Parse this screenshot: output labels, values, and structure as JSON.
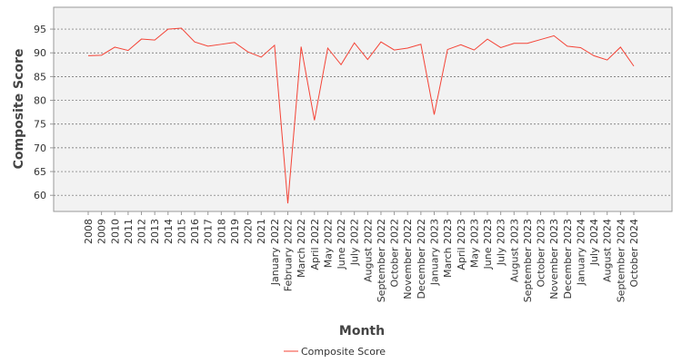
{
  "chart_data": {
    "type": "line",
    "x_label": "Month",
    "y_label": "Composite Score",
    "categories": [
      "2008",
      "2009",
      "2010",
      "2011",
      "2012",
      "2013",
      "2014",
      "2015",
      "2016",
      "2017",
      "2018",
      "2019",
      "2020",
      "2021",
      "January 2022",
      "February 2022",
      "March 2022",
      "April 2022",
      "May 2022",
      "June 2022",
      "July 2022",
      "August 2022",
      "September 2022",
      "October 2022",
      "November 2022",
      "December 2022",
      "January 2023",
      "March 2023",
      "April 2023",
      "May 2023",
      "June 2023",
      "July 2023",
      "August 2023",
      "September 2023",
      "October 2023",
      "November 2023",
      "December 2023",
      "January 2024",
      "July 2024",
      "August 2024",
      "September 2024",
      "October 2024"
    ],
    "series": [
      {
        "name": "Composite Score",
        "color": "#f44336",
        "values": [
          89.4,
          89.5,
          91.2,
          90.5,
          92.9,
          92.7,
          95.0,
          95.2,
          92.3,
          91.4,
          91.8,
          92.2,
          90.2,
          89.1,
          91.6,
          58.3,
          91.3,
          75.8,
          91.0,
          87.5,
          92.1,
          88.6,
          92.3,
          90.6,
          91.0,
          91.8,
          77.0,
          90.7,
          91.7,
          90.6,
          92.9,
          91.1,
          92.0,
          92.0,
          92.8,
          93.6,
          91.4,
          91.1,
          89.4,
          88.5,
          91.2,
          87.2
        ]
      }
    ],
    "ylim": [
      56.6,
      99.6
    ],
    "yticks": [
      60,
      65,
      70,
      75,
      80,
      85,
      90,
      95
    ],
    "grid": true
  }
}
